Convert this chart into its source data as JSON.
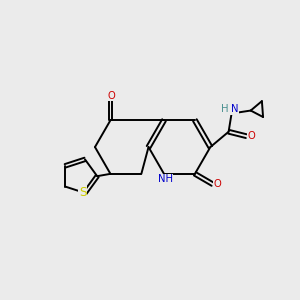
{
  "bg_color": "#ebebeb",
  "atom_colors": {
    "C": "#000000",
    "N": "#0000cc",
    "O": "#cc0000",
    "S": "#cccc00",
    "H_N": "#4a9090"
  },
  "lw": 1.4,
  "fs": 7.2
}
